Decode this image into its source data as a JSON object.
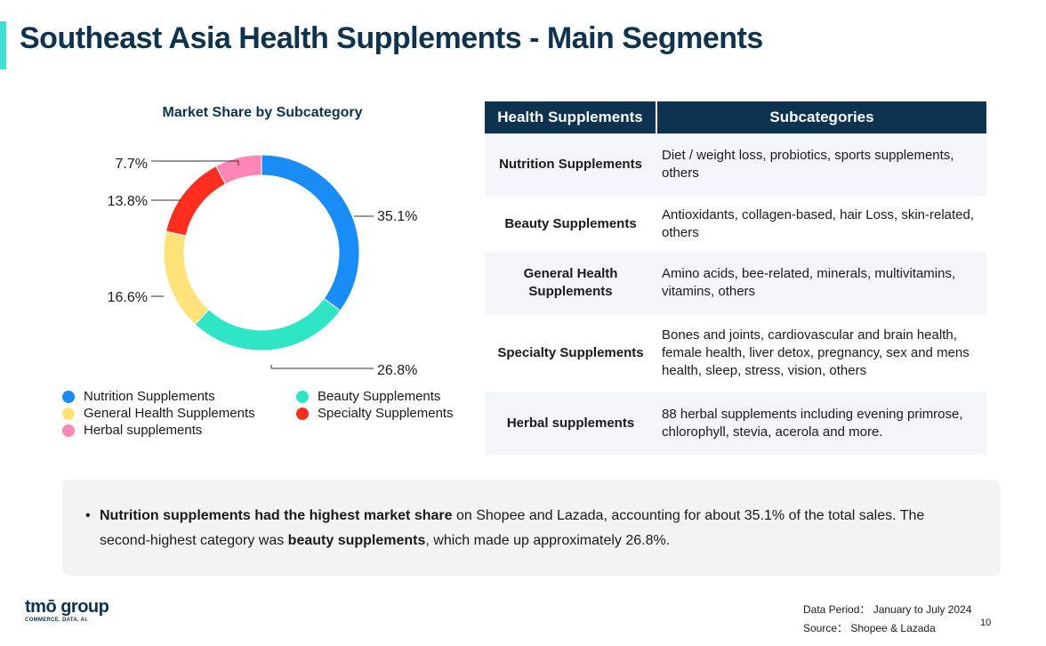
{
  "title": "Southeast Asia Health Supplements - Main Segments",
  "colors": {
    "accent": "#3fe0d0",
    "navy": "#0d3350",
    "nutrition": "#1a8cf5",
    "beauty": "#2ee6c5",
    "general": "#ffe37a",
    "specialty": "#ff2e1f",
    "herbal": "#ff85b5"
  },
  "chart_data": {
    "type": "pie",
    "variant": "donut",
    "title": "Market Share by Subcategory",
    "slices": [
      {
        "name": "Nutrition Supplements",
        "value": 35.1,
        "label": "35.1%",
        "color": "#1a8cf5"
      },
      {
        "name": "Beauty Supplements",
        "value": 26.8,
        "label": "26.8%",
        "color": "#2ee6c5"
      },
      {
        "name": "General Health Supplements",
        "value": 16.6,
        "label": "16.6%",
        "color": "#ffe37a"
      },
      {
        "name": "Specialty Supplements",
        "value": 13.8,
        "label": "13.8%",
        "color": "#ff2e1f"
      },
      {
        "name": "Herbal supplements",
        "value": 7.7,
        "label": "7.7%",
        "color": "#ff85b5"
      }
    ],
    "legend_position": "bottom"
  },
  "table": {
    "headers": [
      "Health Supplements",
      "Subcategories"
    ],
    "rows": [
      {
        "segment": "Nutrition Supplements",
        "subcategories": "Diet / weight loss, probiotics, sports supplements, others"
      },
      {
        "segment": "Beauty Supplements",
        "subcategories": "Antioxidants, collagen-based, hair Loss, skin-related, others"
      },
      {
        "segment": "General Health Supplements",
        "subcategories": "Amino acids, bee-related, minerals, multivitamins, vitamins, others"
      },
      {
        "segment": "Specialty Supplements",
        "subcategories": "Bones and joints, cardiovascular and brain health, female health, liver detox, pregnancy, sex and mens health, sleep, stress, vision, others"
      },
      {
        "segment": "Herbal supplements",
        "subcategories": "88 herbal supplements including evening primrose, chlorophyll, stevia, acerola and more."
      }
    ]
  },
  "note": {
    "bullet": "•",
    "bold1": "Nutrition supplements had the highest market share",
    "text1": " on Shopee and Lazada, accounting for about 35.1% of the total sales. The second-highest category was ",
    "bold2": "beauty supplements",
    "text2": ", which made up approximately 26.8%."
  },
  "footer": {
    "logo_text": "tmō group",
    "logo_tagline": "COMMERCE. DATA. AI.",
    "data_period": "Data Period： January to July 2024",
    "source": "Source： Shopee & Lazada",
    "page_number": "10"
  }
}
